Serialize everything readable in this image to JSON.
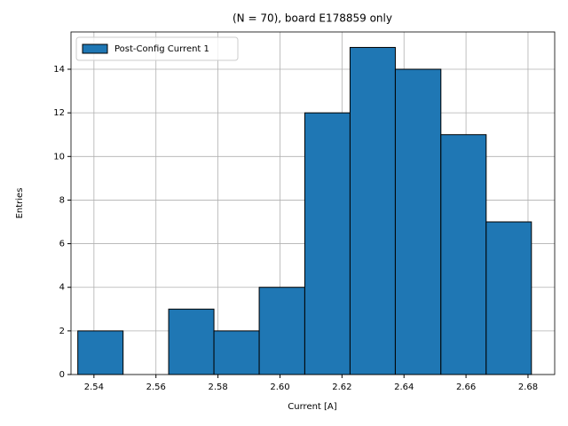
{
  "chart_data": {
    "type": "histogram",
    "title": "(N = 70), board E178859 only",
    "xlabel": "Current [A]",
    "ylabel": "Entries",
    "bins": [
      2.5348,
      2.5494,
      2.5641,
      2.5787,
      2.5933,
      2.608,
      2.6226,
      2.6372,
      2.6519,
      2.6665,
      2.6811
    ],
    "series": [
      {
        "name": "Post-Config Current 1",
        "color": "#1f77b4",
        "values": [
          2,
          0,
          3,
          2,
          4,
          12,
          15,
          14,
          11,
          7
        ]
      }
    ],
    "xlim": [
      2.5326,
      2.6886
    ],
    "xticks": [
      2.54,
      2.56,
      2.58,
      {
        "value": 2.6,
        "label": "2.60"
      },
      2.62,
      2.64,
      2.66,
      2.68
    ],
    "ylim": [
      0,
      15.71
    ],
    "yticks": [
      0,
      2,
      4,
      6,
      8,
      10,
      12,
      14
    ],
    "grid": true,
    "legend": "upper left",
    "edgecolor": "#000000"
  }
}
